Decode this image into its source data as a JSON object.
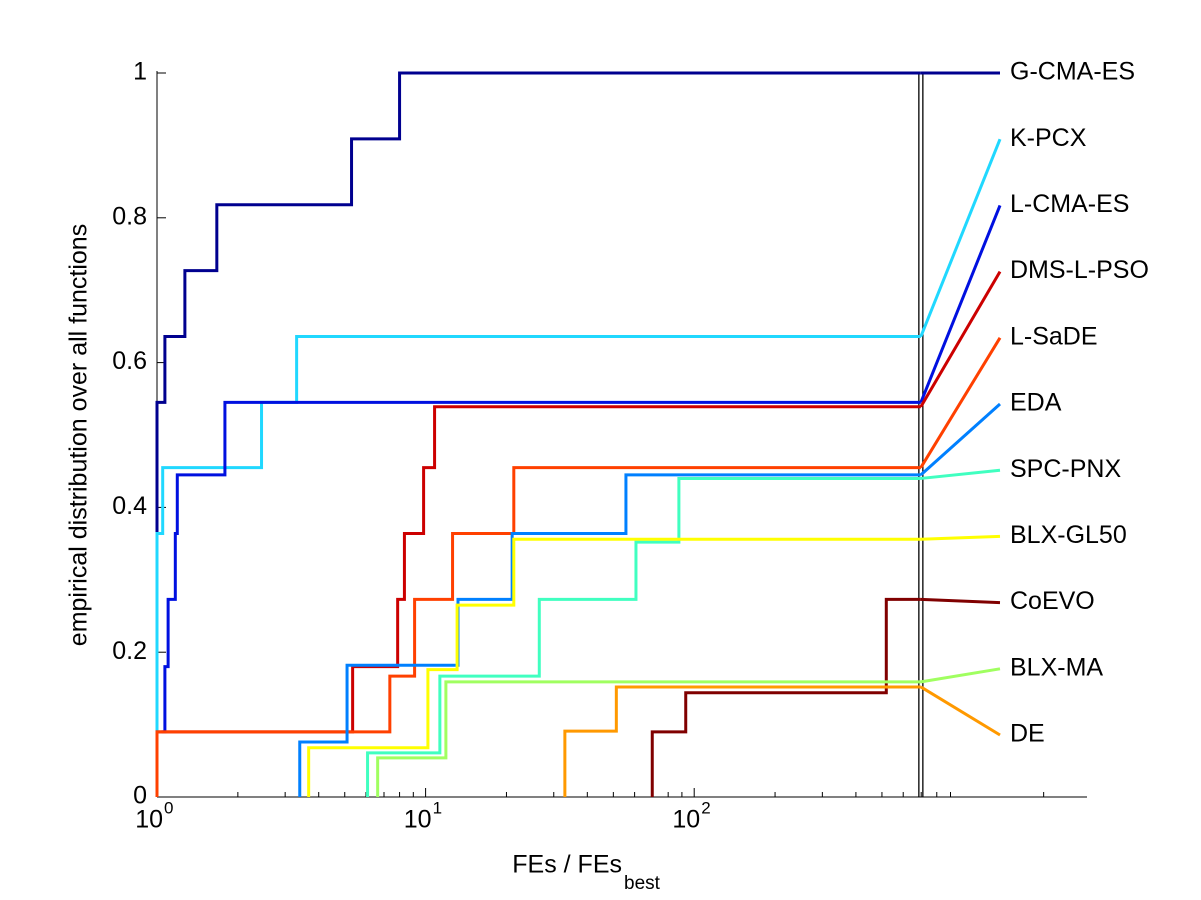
{
  "chart_data": {
    "type": "step",
    "xlabel": "FEs / FEs",
    "xlabel_sub": "best",
    "ylabel": "empirical distribution over all functions",
    "xscale": "log",
    "xlim": [
      1,
      2900
    ],
    "ylim": [
      0,
      1
    ],
    "xticks": [
      {
        "value": 1,
        "label": "10",
        "exponent": "0"
      },
      {
        "value": 10,
        "label": "10",
        "exponent": "1"
      },
      {
        "value": 100,
        "label": "10",
        "exponent": "2"
      }
    ],
    "yticks": [
      0,
      0.2,
      0.4,
      0.6,
      0.8,
      1
    ],
    "series": [
      {
        "name": "G-CMA-ES",
        "color": "#00008f",
        "x": [
          1,
          1,
          1.07,
          1.27,
          1.67,
          5.3,
          8.0,
          698
        ],
        "values": [
          0,
          0.545,
          0.636,
          0.727,
          0.818,
          0.909,
          1.0,
          1.0
        ]
      },
      {
        "name": "K-PCX",
        "color": "#20d8ff",
        "x": [
          1,
          1,
          1.05,
          2.45,
          3.31,
          698
        ],
        "values": [
          0,
          0.364,
          0.455,
          0.545,
          0.636,
          0.636
        ]
      },
      {
        "name": "L-CMA-ES",
        "color": "#0010e0",
        "x": [
          1.04,
          1.07,
          1.1,
          1.17,
          1.19,
          1.79,
          698
        ],
        "values": [
          0.09,
          0.18,
          0.273,
          0.364,
          0.445,
          0.545,
          0.545
        ]
      },
      {
        "name": "DMS-L-PSO",
        "color": "#cc0000",
        "x": [
          1,
          1,
          5.35,
          7.87,
          8.34,
          9.83,
          10.8,
          698
        ],
        "values": [
          0,
          0.09,
          0.18,
          0.273,
          0.364,
          0.455,
          0.539,
          0.539
        ]
      },
      {
        "name": "L-SaDE",
        "color": "#ff4000",
        "x": [
          1,
          1,
          7.36,
          9.1,
          12.6,
          21.3,
          698
        ],
        "values": [
          0,
          0.09,
          0.167,
          0.273,
          0.364,
          0.455,
          0.455
        ]
      },
      {
        "name": "EDA",
        "color": "#0080ff",
        "x": [
          3.4,
          3.4,
          5.1,
          13.2,
          21,
          55.7,
          698
        ],
        "values": [
          0,
          0.076,
          0.182,
          0.273,
          0.364,
          0.445,
          0.445
        ]
      },
      {
        "name": "SPC-PNX",
        "color": "#40ffc0",
        "x": [
          6.08,
          6.08,
          11.3,
          26.5,
          60.7,
          87.7,
          698
        ],
        "values": [
          0,
          0.061,
          0.167,
          0.273,
          0.352,
          0.44,
          0.44
        ]
      },
      {
        "name": "BLX-GL50",
        "color": "#ffff00",
        "x": [
          3.67,
          3.67,
          10.2,
          13.1,
          21.3,
          698
        ],
        "values": [
          0,
          0.068,
          0.176,
          0.265,
          0.356,
          0.356
        ]
      },
      {
        "name": "CoEVO",
        "color": "#800000",
        "x": [
          69.8,
          69.8,
          93,
          519,
          698
        ],
        "values": [
          0,
          0.09,
          0.144,
          0.273,
          0.273
        ]
      },
      {
        "name": "BLX-MA",
        "color": "#a0ff60",
        "x": [
          6.63,
          6.63,
          11.9,
          698
        ],
        "values": [
          0,
          0.054,
          0.159,
          0.159
        ]
      },
      {
        "name": "DE",
        "color": "#ff9900",
        "x": [
          33,
          33,
          51.3,
          698
        ],
        "values": [
          0,
          0.091,
          0.152,
          0.152
        ]
      }
    ]
  }
}
